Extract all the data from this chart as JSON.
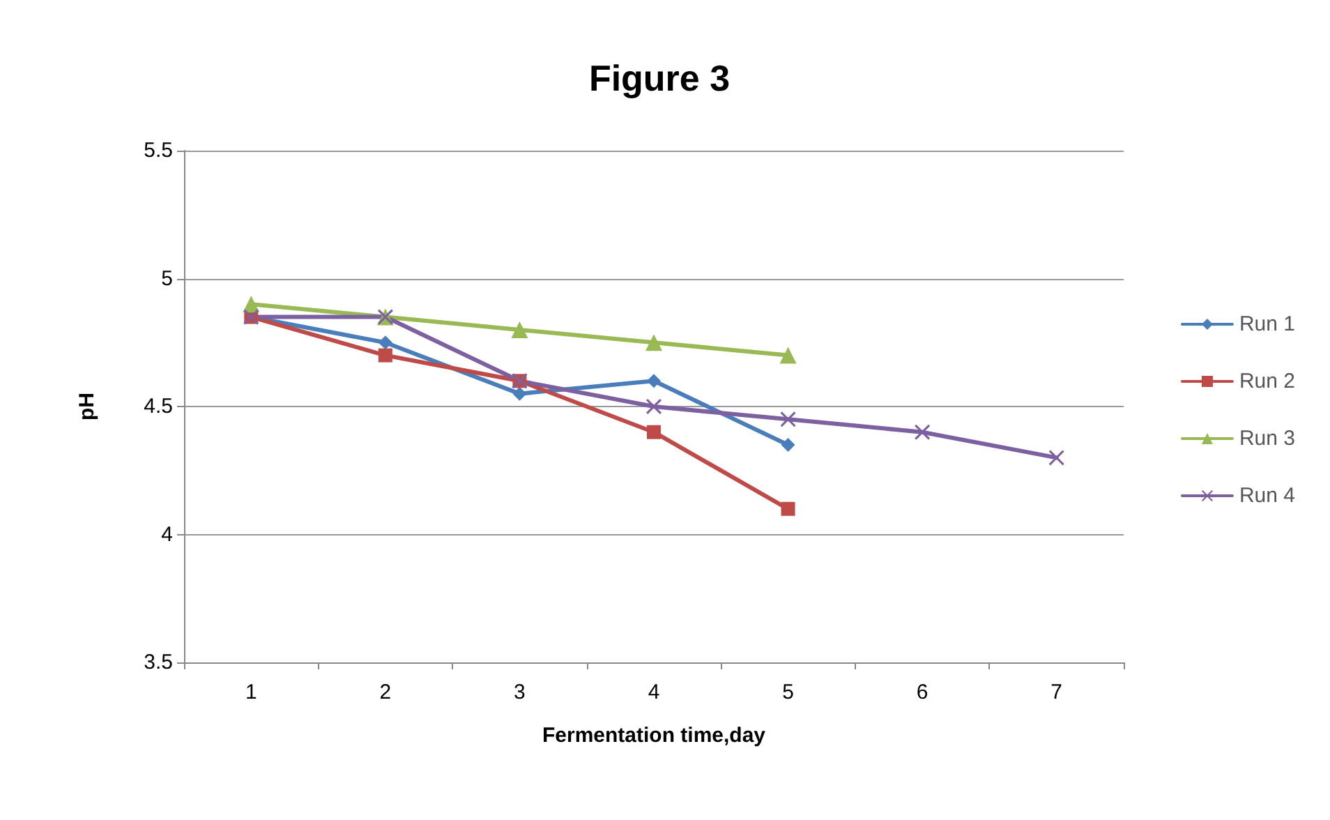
{
  "chart_data": {
    "type": "line",
    "title": "Figure 3",
    "xlabel": "Fermentation time,day",
    "ylabel": "pH",
    "categories": [
      "1",
      "2",
      "3",
      "4",
      "5",
      "6",
      "7"
    ],
    "series": [
      {
        "name": "Run 1",
        "color": "#4a7ebb",
        "marker": "diamond",
        "values": [
          4.85,
          4.75,
          4.55,
          4.6,
          4.35,
          null,
          null
        ]
      },
      {
        "name": "Run 2",
        "color": "#be4b48",
        "marker": "square",
        "values": [
          4.85,
          4.7,
          4.6,
          4.4,
          4.1,
          null,
          null
        ]
      },
      {
        "name": "Run 3",
        "color": "#98b954",
        "marker": "triangle",
        "values": [
          4.9,
          4.85,
          4.8,
          4.75,
          4.7,
          null,
          null
        ]
      },
      {
        "name": "Run 4",
        "color": "#7d60a0",
        "marker": "cross",
        "values": [
          4.85,
          4.85,
          4.6,
          4.5,
          4.45,
          4.4,
          4.3
        ]
      }
    ],
    "ylim": [
      3.5,
      5.5
    ],
    "yticks": [
      3.5,
      4,
      4.5,
      5,
      5.5
    ],
    "grid": "y",
    "legend": "right",
    "line_style": "solid"
  }
}
